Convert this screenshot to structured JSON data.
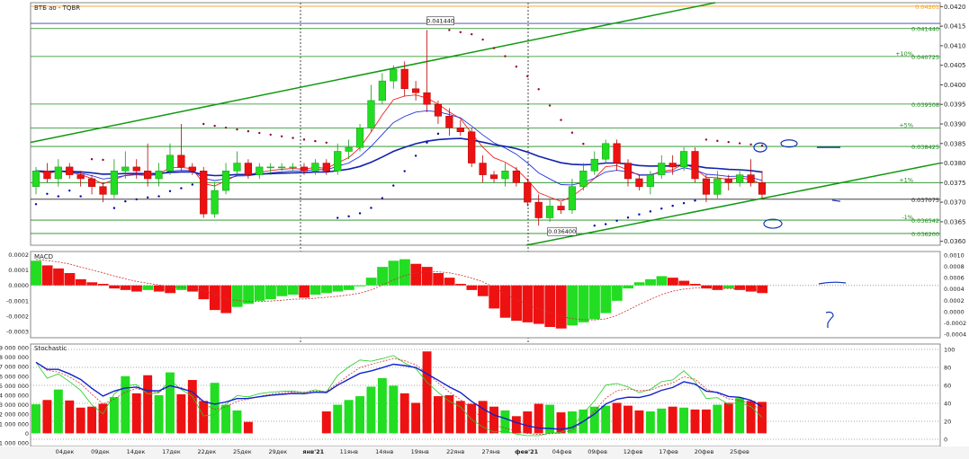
{
  "panels": {
    "price": {
      "label": "ВТБ ао - TQBR",
      "y_ticks": [
        "0.0420",
        "0.0415",
        "0.0410",
        "0.0405",
        "0.0400",
        "0.0395",
        "0.0390",
        "0.0385",
        "0.0380",
        "0.0375",
        "0.0370",
        "0.0365",
        "0.0360"
      ]
    },
    "macd": {
      "label": "MACD",
      "left_ticks": [
        "0.0002",
        "0.0001",
        "0.0000",
        "-0.0001",
        "-0.0002",
        "-0.0003"
      ],
      "right_ticks": [
        "0.0010",
        "0.0008",
        "0.0006",
        "0.0004",
        "0.0002",
        "0.0000",
        "-0.0002",
        "-0.0004"
      ]
    },
    "stoch": {
      "label": "Stochastic",
      "left_ticks": [
        "9 000 000",
        "8 000 000",
        "7 000 000",
        "6 000 000",
        "5 000 000",
        "4 000 000",
        "3 000 000",
        "2 000 000",
        "1 000 000",
        "0",
        "-1 000 000"
      ],
      "right_ticks": [
        "100",
        "80",
        "60",
        "40",
        "20",
        "0"
      ]
    }
  },
  "levels": [
    {
      "value": 0.04201,
      "label": "0.04201",
      "color": "#f0a020"
    },
    {
      "value": 0.04144,
      "label": "0.041440",
      "color": "#1a8a1a"
    },
    {
      "value": 0.040725,
      "label": "0.040725",
      "color": "#1a8a1a",
      "tag": "+10%"
    },
    {
      "value": 0.039508,
      "label": "0.039508",
      "color": "#1a8a1a"
    },
    {
      "value": 0.0389,
      "label": "",
      "color": "#1a8a1a",
      "tag": "+5%"
    },
    {
      "value": 0.038425,
      "label": "0.038425",
      "color": "#1a8a1a"
    },
    {
      "value": 0.0375,
      "label": "",
      "color": "#1a8a1a",
      "tag": "+1%"
    },
    {
      "value": 0.037075,
      "label": "0.037075",
      "color": "#222222"
    },
    {
      "value": 0.036542,
      "label": "0.036542",
      "color": "#1a8a1a",
      "tag": "-1%"
    },
    {
      "value": 0.0362,
      "label": "0.036200",
      "color": "#1a8a1a"
    }
  ],
  "annotations": {
    "high": "0.041440",
    "low": "0.036400"
  },
  "x_labels": [
    "04дек",
    "09дек",
    "14дек",
    "17дек",
    "22дек",
    "25дек",
    "29дек",
    "янв'21",
    "11янв",
    "14янв",
    "19янв",
    "22янв",
    "27янв",
    "фев'21",
    "04фев",
    "09фев",
    "12фев",
    "17фев",
    "20фев",
    "25фев"
  ],
  "colors": {
    "up": "#22dd22",
    "down": "#ee1111",
    "ma_fast": "#ee2222",
    "ma_slow": "#2233dd",
    "ma_long": "#1122aa",
    "trend": "#119911",
    "sar": "#990033"
  },
  "chart_data": {
    "type": "candlestick",
    "title": "ВТБ ао - TQBR",
    "ylim": [
      0.0359,
      0.0421
    ],
    "candles": [
      [
        0.0374,
        0.0378,
        0.0372,
        0.0379
      ],
      [
        0.0378,
        0.0376,
        0.0375,
        0.038
      ],
      [
        0.0376,
        0.0379,
        0.0374,
        0.0381
      ],
      [
        0.0379,
        0.0377,
        0.0376,
        0.038
      ],
      [
        0.0377,
        0.0376,
        0.0374,
        0.0378
      ],
      [
        0.0376,
        0.0374,
        0.0372,
        0.0377
      ],
      [
        0.0374,
        0.0372,
        0.037,
        0.0375
      ],
      [
        0.0372,
        0.0378,
        0.0371,
        0.0381
      ],
      [
        0.0378,
        0.0379,
        0.0376,
        0.0383
      ],
      [
        0.0379,
        0.0378,
        0.0376,
        0.0381
      ],
      [
        0.0378,
        0.0376,
        0.0374,
        0.0385
      ],
      [
        0.0376,
        0.0378,
        0.0374,
        0.038
      ],
      [
        0.0378,
        0.0382,
        0.0377,
        0.0385
      ],
      [
        0.0382,
        0.0379,
        0.0378,
        0.039
      ],
      [
        0.0379,
        0.0378,
        0.0377,
        0.038
      ],
      [
        0.0378,
        0.0367,
        0.0366,
        0.0379
      ],
      [
        0.0367,
        0.0373,
        0.0366,
        0.0375
      ],
      [
        0.0373,
        0.0378,
        0.0372,
        0.038
      ],
      [
        0.0378,
        0.038,
        0.0377,
        0.0383
      ],
      [
        0.038,
        0.0377,
        0.0376,
        0.0381
      ],
      [
        0.0377,
        0.0379,
        0.0376,
        0.038
      ],
      [
        0.0379,
        0.0379,
        0.0377,
        0.038
      ],
      [
        0.0379,
        0.0379,
        0.0378,
        0.038
      ],
      [
        0.0379,
        0.0379,
        0.0378,
        0.038
      ],
      [
        0.0379,
        0.0378,
        0.0377,
        0.038
      ],
      [
        0.0378,
        0.038,
        0.0377,
        0.0381
      ],
      [
        0.038,
        0.0378,
        0.0377,
        0.0381
      ],
      [
        0.0378,
        0.0383,
        0.0377,
        0.0385
      ],
      [
        0.0383,
        0.0384,
        0.0381,
        0.0386
      ],
      [
        0.0384,
        0.0389,
        0.0383,
        0.039
      ],
      [
        0.0389,
        0.0396,
        0.0388,
        0.04
      ],
      [
        0.0396,
        0.0401,
        0.0395,
        0.0403
      ],
      [
        0.0401,
        0.0404,
        0.0399,
        0.0405
      ],
      [
        0.0404,
        0.0399,
        0.0397,
        0.0406
      ],
      [
        0.0399,
        0.0398,
        0.0396,
        0.0401
      ],
      [
        0.0398,
        0.0395,
        0.0393,
        0.0414
      ],
      [
        0.0395,
        0.0392,
        0.039,
        0.0396
      ],
      [
        0.0392,
        0.0389,
        0.0387,
        0.0394
      ],
      [
        0.0389,
        0.0388,
        0.0387,
        0.0391
      ],
      [
        0.0388,
        0.038,
        0.0379,
        0.0389
      ],
      [
        0.038,
        0.0377,
        0.0375,
        0.0382
      ],
      [
        0.0377,
        0.0376,
        0.0375,
        0.0378
      ],
      [
        0.0376,
        0.0378,
        0.0374,
        0.038
      ],
      [
        0.0378,
        0.0375,
        0.0374,
        0.0379
      ],
      [
        0.0375,
        0.037,
        0.0369,
        0.0376
      ],
      [
        0.037,
        0.0366,
        0.0364,
        0.0372
      ],
      [
        0.0366,
        0.0369,
        0.0365,
        0.0371
      ],
      [
        0.0369,
        0.0368,
        0.0367,
        0.037
      ],
      [
        0.0368,
        0.0374,
        0.0367,
        0.0376
      ],
      [
        0.0374,
        0.0378,
        0.0373,
        0.038
      ],
      [
        0.0378,
        0.0381,
        0.0377,
        0.0383
      ],
      [
        0.0381,
        0.0385,
        0.038,
        0.0386
      ],
      [
        0.0385,
        0.038,
        0.0378,
        0.0386
      ],
      [
        0.038,
        0.0376,
        0.0374,
        0.0381
      ],
      [
        0.0376,
        0.0374,
        0.0373,
        0.0377
      ],
      [
        0.0374,
        0.0377,
        0.0372,
        0.0378
      ],
      [
        0.0377,
        0.038,
        0.0376,
        0.0382
      ],
      [
        0.038,
        0.0379,
        0.0377,
        0.0382
      ],
      [
        0.0379,
        0.0383,
        0.0378,
        0.0384
      ],
      [
        0.0383,
        0.0376,
        0.0375,
        0.0384
      ],
      [
        0.0376,
        0.0372,
        0.037,
        0.0377
      ],
      [
        0.0372,
        0.0376,
        0.0371,
        0.0378
      ],
      [
        0.0376,
        0.0375,
        0.0373,
        0.0377
      ],
      [
        0.0375,
        0.0377,
        0.0374,
        0.0378
      ],
      [
        0.0377,
        0.0375,
        0.0374,
        0.0381
      ],
      [
        0.0375,
        0.0372,
        0.0371,
        0.0378
      ]
    ],
    "macd_hist": [
      0.00016,
      0.00013,
      0.00011,
      8e-05,
      4e-05,
      2e-05,
      1e-05,
      -2e-05,
      -3e-05,
      -4e-05,
      -3e-05,
      -4e-05,
      -5e-05,
      -3e-05,
      -4e-05,
      -9e-05,
      -0.00016,
      -0.00018,
      -0.00014,
      -0.00012,
      -0.0001,
      -9e-05,
      -7e-05,
      -6e-05,
      -8e-05,
      -6e-05,
      -5e-05,
      -4e-05,
      -3e-05,
      0.0,
      5e-05,
      0.00012,
      0.00016,
      0.00017,
      0.00014,
      0.00012,
      8e-05,
      5e-05,
      1e-05,
      -3e-05,
      -7e-05,
      -0.00015,
      -0.00021,
      -0.00023,
      -0.00024,
      -0.00025,
      -0.00027,
      -0.00028,
      -0.00026,
      -0.00024,
      -0.00022,
      -0.00018,
      -0.0001,
      -2e-05,
      2e-05,
      4e-05,
      6e-05,
      5e-05,
      3e-05,
      1e-05,
      -2e-05,
      -3e-05,
      -2e-05,
      -3e-05,
      -4e-05,
      -5e-05
    ],
    "volume": [
      3050000,
      3500000,
      4600000,
      3450000,
      2700000,
      2800000,
      3100000,
      3800000,
      6000000,
      4200000,
      6100000,
      4000000,
      6400000,
      4100000,
      5600000,
      3400000,
      5300000,
      3000000,
      2400000,
      1200000,
      0,
      0,
      0,
      0,
      0,
      0,
      2300000,
      3000000,
      3500000,
      3900000,
      4900000,
      5800000,
      5000000,
      4200000,
      3200000,
      8600000,
      3900000,
      4000000,
      3400000,
      3100000,
      3400000,
      2800000,
      2400000,
      1800000,
      2300000,
      3100000,
      3000000,
      2200000,
      2300000,
      2500000,
      2800000,
      2900000,
      3200000,
      2900000,
      2400000,
      2300000,
      2600000,
      2800000,
      2700000,
      2500000,
      2500000,
      3000000,
      3200000,
      3700000,
      3400000,
      3300000
    ]
  }
}
